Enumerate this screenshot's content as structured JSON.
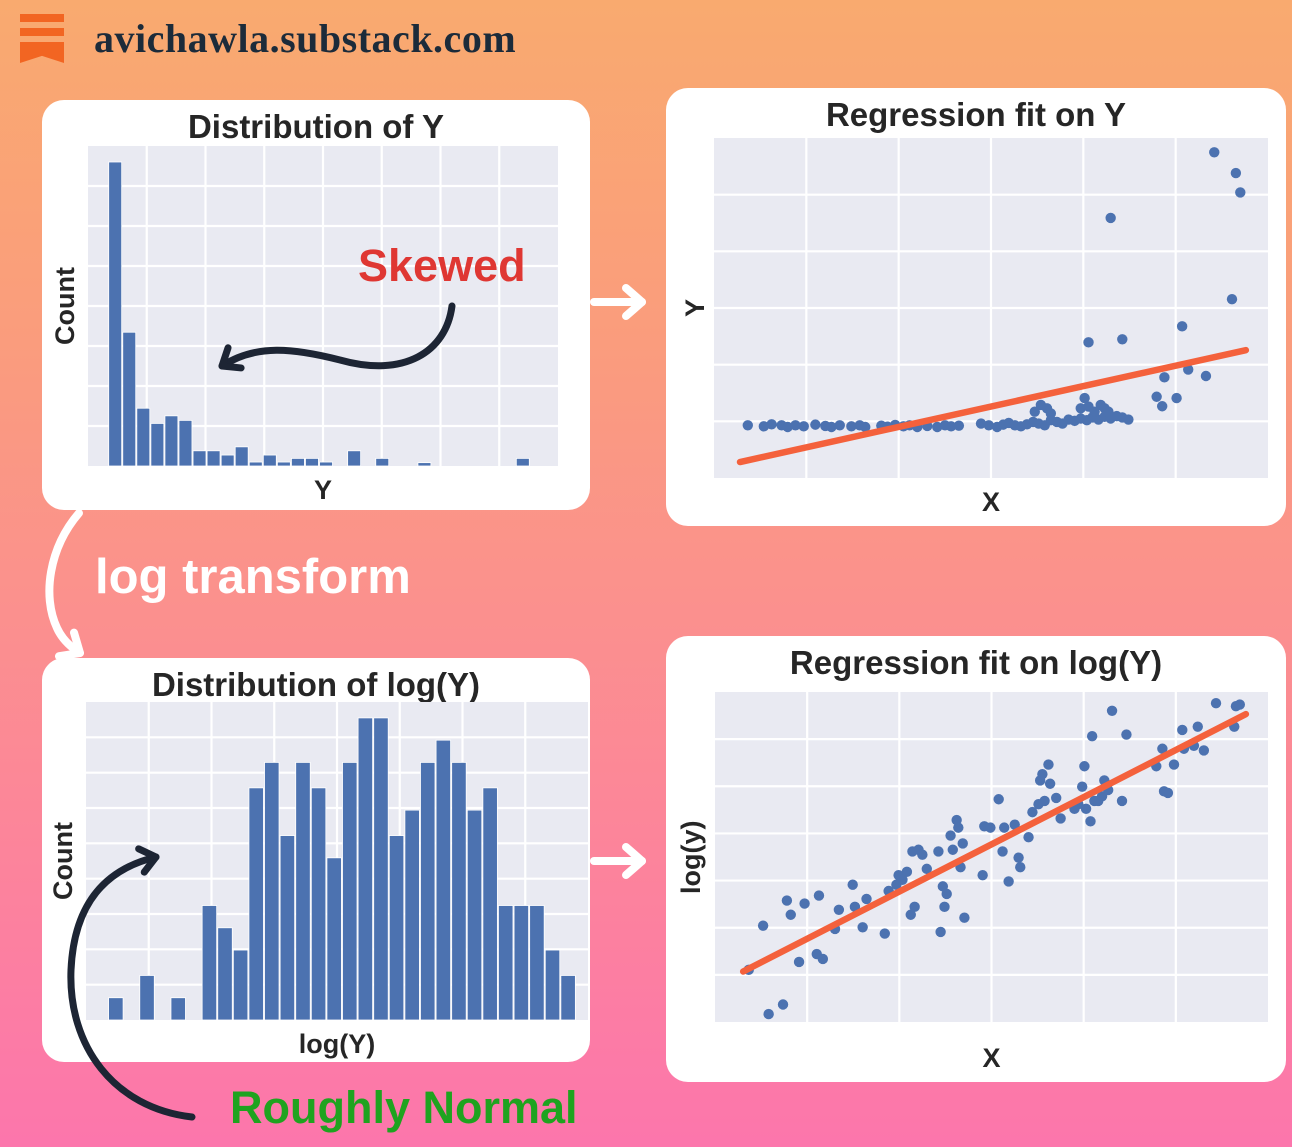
{
  "header": {
    "site_label": "avichawla.substack.com",
    "icon": "substack-logo"
  },
  "annotations": {
    "skewed": "Skewed",
    "log_transform": "log transform",
    "roughly_normal": "Roughly Normal"
  },
  "colors": {
    "bg_top": "#F9AA6F",
    "bg_bottom": "#FC76AC",
    "card": "#FFFFFF",
    "plot_bg": "#E9EAF2",
    "grid": "#FFFFFF",
    "bar_blue": "#4C72B0",
    "scatter_blue": "#4C72B0",
    "fit_line": "#F4613C",
    "title_text": "#262626",
    "skewed_red": "#DF3733",
    "normal_green": "#1FA31F",
    "arrow_dark": "#1D2534",
    "substack_orange": "#F26522",
    "site_text": "#1C2B3A"
  },
  "chart_data": [
    {
      "type": "bar",
      "title": "Distribution of Y",
      "xlabel": "Y",
      "ylabel": "Count",
      "grid_cols": 8,
      "grid_rows": 8,
      "x_start": 0.043,
      "x_end": 1.0,
      "values": [
        100,
        44,
        19,
        14,
        16.5,
        15,
        5,
        5,
        3.6,
        6.3,
        1.3,
        3.6,
        1.3,
        2.5,
        2.5,
        1.3,
        0,
        5,
        0,
        2.5,
        0,
        0,
        1.1,
        0,
        0,
        0,
        0,
        0,
        0,
        2.5,
        0,
        0
      ],
      "ylim_note": "no tick labels shown; heights relative, tallest bin = 100"
    },
    {
      "type": "scatter",
      "title": "Regression fit on Y",
      "xlabel": "X",
      "ylabel": "Y",
      "grid_cols": 6,
      "grid_rows": 6,
      "points": [
        [
          0.061,
          0.155
        ],
        [
          0.09,
          0.152
        ],
        [
          0.104,
          0.158
        ],
        [
          0.122,
          0.155
        ],
        [
          0.133,
          0.15
        ],
        [
          0.147,
          0.155
        ],
        [
          0.162,
          0.152
        ],
        [
          0.183,
          0.157
        ],
        [
          0.201,
          0.153
        ],
        [
          0.212,
          0.15
        ],
        [
          0.227,
          0.155
        ],
        [
          0.248,
          0.152
        ],
        [
          0.263,
          0.155
        ],
        [
          0.273,
          0.15
        ],
        [
          0.302,
          0.154
        ],
        [
          0.313,
          0.151
        ],
        [
          0.327,
          0.156
        ],
        [
          0.342,
          0.152
        ],
        [
          0.353,
          0.155
        ],
        [
          0.367,
          0.15
        ],
        [
          0.385,
          0.153
        ],
        [
          0.403,
          0.15
        ],
        [
          0.417,
          0.155
        ],
        [
          0.428,
          0.152
        ],
        [
          0.442,
          0.154
        ],
        [
          0.482,
          0.16
        ],
        [
          0.496,
          0.155
        ],
        [
          0.511,
          0.15
        ],
        [
          0.522,
          0.157
        ],
        [
          0.532,
          0.162
        ],
        [
          0.543,
          0.155
        ],
        [
          0.554,
          0.152
        ],
        [
          0.565,
          0.158
        ],
        [
          0.576,
          0.165
        ],
        [
          0.586,
          0.16
        ],
        [
          0.597,
          0.155
        ],
        [
          0.608,
          0.17
        ],
        [
          0.619,
          0.165
        ],
        [
          0.629,
          0.16
        ],
        [
          0.64,
          0.172
        ],
        [
          0.651,
          0.168
        ],
        [
          0.662,
          0.175
        ],
        [
          0.673,
          0.17
        ],
        [
          0.683,
          0.178
        ],
        [
          0.694,
          0.172
        ],
        [
          0.705,
          0.18
        ],
        [
          0.716,
          0.175
        ],
        [
          0.727,
          0.182
        ],
        [
          0.737,
          0.178
        ],
        [
          0.748,
          0.172
        ],
        [
          0.579,
          0.195
        ],
        [
          0.59,
          0.215
        ],
        [
          0.601,
          0.205
        ],
        [
          0.608,
          0.19
        ],
        [
          0.662,
          0.205
        ],
        [
          0.669,
          0.235
        ],
        [
          0.676,
          0.21
        ],
        [
          0.687,
          0.195
        ],
        [
          0.698,
          0.215
        ],
        [
          0.705,
          0.205
        ],
        [
          0.712,
          0.195
        ],
        [
          0.676,
          0.399
        ],
        [
          0.737,
          0.408
        ],
        [
          0.799,
          0.239
        ],
        [
          0.809,
          0.211
        ],
        [
          0.813,
          0.296
        ],
        [
          0.835,
          0.235
        ],
        [
          0.845,
          0.446
        ],
        [
          0.856,
          0.319
        ],
        [
          0.888,
          0.3
        ],
        [
          0.935,
          0.526
        ],
        [
          0.716,
          0.765
        ],
        [
          0.903,
          0.958
        ],
        [
          0.942,
          0.897
        ],
        [
          0.95,
          0.84
        ]
      ],
      "fit_line": [
        [
          0.047,
          0.047
        ],
        [
          0.96,
          0.376
        ]
      ],
      "axes_note": "normalized 0-1 coords, y measured up from x-axis; no tick labels shown"
    },
    {
      "type": "bar",
      "title": "Distribution of log(Y)",
      "xlabel": "log(Y)",
      "ylabel": "Count",
      "grid_cols": 8,
      "grid_rows": 9,
      "x_start": 0.044,
      "x_end": 0.976,
      "values": [
        7,
        0,
        14,
        0,
        7,
        0,
        36,
        29,
        22,
        73,
        81,
        58,
        81,
        73,
        51,
        81,
        95,
        95,
        58,
        66,
        81,
        88,
        81,
        66,
        73,
        36,
        36,
        36,
        22,
        14
      ],
      "ylim_note": "no tick labels shown; heights relative, tallest bin = 95"
    },
    {
      "type": "scatter",
      "title": "Regression fit on log(Y)",
      "xlabel": "X",
      "ylabel": "log(y)",
      "grid_cols": 6,
      "grid_rows": 7,
      "points": [
        [
          0.061,
          0.158
        ],
        [
          0.097,
          0.024
        ],
        [
          0.123,
          0.053
        ],
        [
          0.087,
          0.292
        ],
        [
          0.13,
          0.368
        ],
        [
          0.137,
          0.325
        ],
        [
          0.152,
          0.182
        ],
        [
          0.162,
          0.359
        ],
        [
          0.188,
          0.383
        ],
        [
          0.184,
          0.206
        ],
        [
          0.195,
          0.191
        ],
        [
          0.217,
          0.282
        ],
        [
          0.224,
          0.34
        ],
        [
          0.249,
          0.416
        ],
        [
          0.253,
          0.349
        ],
        [
          0.267,
          0.287
        ],
        [
          0.274,
          0.373
        ],
        [
          0.307,
          0.268
        ],
        [
          0.314,
          0.397
        ],
        [
          0.328,
          0.416
        ],
        [
          0.332,
          0.445
        ],
        [
          0.339,
          0.431
        ],
        [
          0.347,
          0.455
        ],
        [
          0.354,
          0.325
        ],
        [
          0.361,
          0.349
        ],
        [
          0.357,
          0.517
        ],
        [
          0.368,
          0.522
        ],
        [
          0.375,
          0.507
        ],
        [
          0.383,
          0.464
        ],
        [
          0.404,
          0.517
        ],
        [
          0.412,
          0.411
        ],
        [
          0.419,
          0.388
        ],
        [
          0.426,
          0.565
        ],
        [
          0.43,
          0.522
        ],
        [
          0.437,
          0.612
        ],
        [
          0.44,
          0.589
        ],
        [
          0.444,
          0.469
        ],
        [
          0.448,
          0.541
        ],
        [
          0.451,
          0.316
        ],
        [
          0.408,
          0.273
        ],
        [
          0.415,
          0.349
        ],
        [
          0.484,
          0.445
        ],
        [
          0.487,
          0.593
        ],
        [
          0.498,
          0.589
        ],
        [
          0.513,
          0.675
        ],
        [
          0.52,
          0.517
        ],
        [
          0.523,
          0.589
        ],
        [
          0.531,
          0.426
        ],
        [
          0.542,
          0.598
        ],
        [
          0.549,
          0.498
        ],
        [
          0.552,
          0.469
        ],
        [
          0.567,
          0.56
        ],
        [
          0.574,
          0.636
        ],
        [
          0.585,
          0.66
        ],
        [
          0.588,
          0.732
        ],
        [
          0.592,
          0.751
        ],
        [
          0.596,
          0.67
        ],
        [
          0.603,
          0.78
        ],
        [
          0.606,
          0.722
        ],
        [
          0.617,
          0.679
        ],
        [
          0.625,
          0.617
        ],
        [
          0.65,
          0.646
        ],
        [
          0.657,
          0.66
        ],
        [
          0.664,
          0.713
        ],
        [
          0.668,
          0.775
        ],
        [
          0.671,
          0.646
        ],
        [
          0.679,
          0.608
        ],
        [
          0.682,
          0.866
        ],
        [
          0.686,
          0.67
        ],
        [
          0.693,
          0.67
        ],
        [
          0.7,
          0.684
        ],
        [
          0.704,
          0.732
        ],
        [
          0.711,
          0.703
        ],
        [
          0.718,
          0.943
        ],
        [
          0.736,
          0.67
        ],
        [
          0.744,
          0.871
        ],
        [
          0.798,
          0.775
        ],
        [
          0.809,
          0.828
        ],
        [
          0.812,
          0.699
        ],
        [
          0.819,
          0.694
        ],
        [
          0.83,
          0.78
        ],
        [
          0.845,
          0.885
        ],
        [
          0.848,
          0.828
        ],
        [
          0.866,
          0.837
        ],
        [
          0.873,
          0.895
        ],
        [
          0.884,
          0.823
        ],
        [
          0.906,
          0.966
        ],
        [
          0.939,
          0.895
        ],
        [
          0.942,
          0.957
        ],
        [
          0.949,
          0.962
        ]
      ],
      "fit_line": [
        [
          0.051,
          0.153
        ],
        [
          0.96,
          0.933
        ]
      ],
      "axes_note": "normalized 0-1 coords, y measured up from x-axis; no tick labels shown"
    }
  ]
}
